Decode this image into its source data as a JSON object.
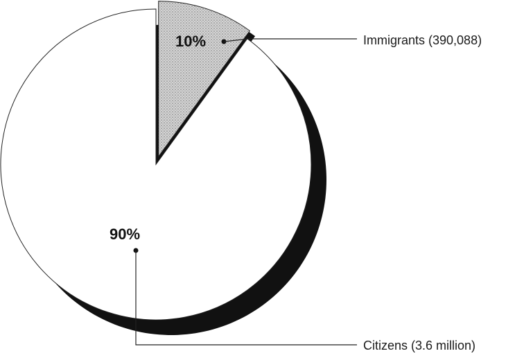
{
  "chart_data": {
    "type": "pie",
    "slices": [
      {
        "label": "Immigrants (390,088)",
        "percent_label": "10%",
        "value": 10,
        "color": "#c8c8c8",
        "pattern": "stipple"
      },
      {
        "label": "Citizens (3.6 million)",
        "percent_label": "90%",
        "value": 90,
        "color": "#ffffff"
      }
    ],
    "start_angle_deg": 0,
    "exploded_slice": 0,
    "shadow_color": "#111111"
  }
}
